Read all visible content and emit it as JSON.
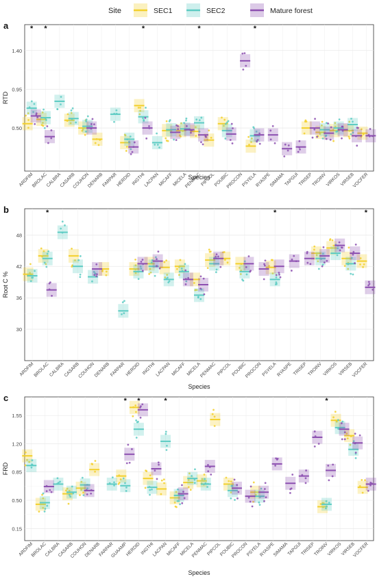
{
  "legend": {
    "title": "Site",
    "items": [
      {
        "label": "SEC1",
        "color": "#F3D02C"
      },
      {
        "label": "SEC2",
        "color": "#5CCBC3"
      },
      {
        "label": "Mature forest",
        "color": "#8C4FB0"
      }
    ]
  },
  "chart_data": [
    {
      "panel": "a",
      "type": "scatter",
      "ylabel": "RTD",
      "xlabel": "Species",
      "yticks": [
        0.5,
        0.95,
        1.4
      ],
      "ytick_labels": [
        "0.50",
        "0.95",
        "1.40"
      ],
      "ylim": [
        0.0,
        1.7
      ],
      "categories": [
        "ARDFIM",
        "BROLAC",
        "CALBRA",
        "CASARB",
        "COUHON",
        "DENARB",
        "FARPAR",
        "HERDID",
        "INGTHI",
        "LACPAN",
        "MICAFF",
        "MICELA",
        "PENMAC",
        "PIPCOL",
        "POUBIC",
        "PROCON",
        "PSYELA",
        "RYASPE",
        "SIMAMA",
        "TAPGUI",
        "TRISEP",
        "TROINV",
        "VIRKOS",
        "VIRSEB",
        "VOCFER"
      ],
      "significant": [
        "ARDFIM",
        "BROLAC",
        "INGTHI",
        "PENMAC",
        "PSYELA"
      ],
      "series": [
        {
          "name": "SEC1",
          "color": "#F3D02C",
          "means": {
            "ARDFIM": 0.55,
            "BROLAC": 0.6,
            "CASARB": 0.59,
            "COUHON": 0.5,
            "DENARB": 0.37,
            "HERDID": 0.33,
            "INGTHI": 0.76,
            "MICAFF": 0.47,
            "MICELA": 0.47,
            "PENMAC": 0.46,
            "PIPCOL": 0.36,
            "POUBIC": 0.55,
            "PSYELA": 0.29,
            "TRISEP": 0.5,
            "TROINV": 0.45,
            "VIRKOS": 0.47,
            "VIRSEB": 0.47,
            "VOCFER": 0.44
          }
        },
        {
          "name": "SEC2",
          "color": "#5CCBC3",
          "means": {
            "ARDFIM": 0.73,
            "BROLAC": 0.62,
            "CALBRA": 0.81,
            "CASARB": 0.61,
            "COUHON": 0.52,
            "FARPAR": 0.66,
            "HERDID": 0.37,
            "INGTHI": 0.63,
            "LACPAN": 0.33,
            "MICAFF": 0.48,
            "MICELA": 0.49,
            "PENMAC": 0.56,
            "POUBIC": 0.47,
            "PSYELA": 0.41,
            "TROINV": 0.48,
            "VIRKOS": 0.5,
            "VIRSEB": 0.54
          }
        },
        {
          "name": "Mature forest",
          "color": "#8C4FB0",
          "means": {
            "ARDFIM": 0.64,
            "BROLAC": 0.4,
            "COUHON": 0.5,
            "HERDID": 0.28,
            "INGTHI": 0.5,
            "MICAFF": 0.45,
            "MICELA": 0.48,
            "PENMAC": 0.42,
            "POUBIC": 0.43,
            "PROCON": 1.28,
            "PSYELA": 0.42,
            "RYASPE": 0.42,
            "SIMAMA": 0.26,
            "TAPGUI": 0.28,
            "TRISEP": 0.5,
            "TROINV": 0.44,
            "VIRKOS": 0.48,
            "VIRSEB": 0.41,
            "VOCFER": 0.41
          }
        }
      ]
    },
    {
      "panel": "b",
      "type": "scatter",
      "ylabel": "Root C %",
      "xlabel": "Species",
      "yticks": [
        30,
        36,
        42,
        48
      ],
      "ytick_labels": [
        "30",
        "36",
        "42",
        "48"
      ],
      "ylim": [
        24,
        53
      ],
      "categories": [
        "ARDFIM",
        "BROLAC",
        "CALBRA",
        "CASARB",
        "COUHON",
        "DENARB",
        "FARPAR",
        "HERDID",
        "INGTHI",
        "LACPAN",
        "MICAFF",
        "MICELA",
        "PENMAC",
        "PIPCOL",
        "POUBIC",
        "PROCON",
        "PSYELA",
        "RYASPE",
        "TRISEP",
        "TROINV",
        "VIRKOS",
        "VIRSEB",
        "VOCFER"
      ],
      "significant": [
        "BROLAC",
        "PSYELA",
        "VOCFER"
      ],
      "series": [
        {
          "name": "SEC1",
          "color": "#F3D02C",
          "means": {
            "ARDFIM": 40.5,
            "BROLAC": 44.0,
            "CASARB": 44.0,
            "DENARB": 41.5,
            "HERDID": 41.5,
            "INGTHI": 42.5,
            "LACPAN": 41.8,
            "MICAFF": 42.0,
            "MICELA": 39.5,
            "PENMAC": 43.2,
            "PIPCOL": 43.5,
            "POUBIC": 42.5,
            "PSYELA": 41.8,
            "TROINV": 44.5,
            "VIRKOS": 45.5,
            "VIRSEB": 43.5,
            "VOCFER": 43.0
          }
        },
        {
          "name": "SEC2",
          "color": "#5CCBC3",
          "means": {
            "ARDFIM": 40.2,
            "BROLAC": 43.5,
            "CALBRA": 48.5,
            "CASARB": 42.0,
            "COUHON": 40.0,
            "FARPAR": 33.5,
            "HERDID": 41.0,
            "INGTHI": 42.0,
            "LACPAN": 39.5,
            "MICAFF": 41.0,
            "MICELA": 36.5,
            "PENMAC": 42.5,
            "POUBIC": 41.0,
            "PSYELA": 39.5,
            "TROINV": 43.5,
            "VIRKOS": 44.5,
            "VIRSEB": 42.5
          }
        },
        {
          "name": "Mature forest",
          "color": "#8C4FB0",
          "means": {
            "BROLAC": 37.5,
            "COUHON": 41.5,
            "HERDID": 42.5,
            "INGTHI": 43.0,
            "MICAFF": 39.5,
            "MICELA": 38.5,
            "PENMAC": 43.5,
            "POUBIC": 42.5,
            "PROCON": 41.5,
            "PSYELA": 42.0,
            "RYASPE": 43.0,
            "TRISEP": 43.5,
            "TROINV": 44.0,
            "VIRKOS": 46.0,
            "VIRSEB": 44.5,
            "VOCFER": 38.0
          }
        }
      ]
    },
    {
      "panel": "c",
      "type": "scatter",
      "ylabel": "FRD",
      "xlabel": "Species",
      "yticks": [
        0.15,
        0.5,
        0.85,
        1.2,
        1.55
      ],
      "ytick_labels": [
        "0.15",
        "0.50",
        "0.85",
        "1.20",
        "1.55"
      ],
      "ylim": [
        0.0,
        1.78
      ],
      "categories": [
        "ARDFIM",
        "BROLAC",
        "CALBRA",
        "CASARB",
        "COUHON",
        "DENARB",
        "FARPAR",
        "GUAAMP",
        "HERDID",
        "INGTHI",
        "LACPAN",
        "MICAFF",
        "MICELA",
        "PENMAC",
        "PIPCOL",
        "POUBIC",
        "PROCON",
        "PSYELA",
        "RYASPE",
        "SIMAMA",
        "TAPGUI",
        "TRISEP",
        "TROINV",
        "VIRKOS",
        "VIRSEB",
        "VOCFER"
      ],
      "significant": [
        "GUAAMP",
        "HERDID",
        "LACPAN",
        "TROINV"
      ],
      "series": [
        {
          "name": "SEC1",
          "color": "#F3D02C",
          "means": {
            "ARDFIM": 1.05,
            "BROLAC": 0.45,
            "CASARB": 0.58,
            "COUHON": 0.65,
            "DENARB": 0.88,
            "GUAAMP": 0.8,
            "HERDID": 1.65,
            "INGTHI": 0.77,
            "LACPAN": 0.64,
            "MICAFF": 0.53,
            "MICELA": 0.72,
            "PENMAC": 0.74,
            "PIPCOL": 1.5,
            "POUBIC": 0.7,
            "PSYELA": 0.6,
            "TROINV": 0.42,
            "VIRKOS": 1.49,
            "VIRSEB": 1.3,
            "VOCFER": 0.66
          }
        },
        {
          "name": "SEC2",
          "color": "#5CCBC3",
          "means": {
            "ARDFIM": 0.93,
            "BROLAC": 0.47,
            "CALBRA": 0.7,
            "CASARB": 0.6,
            "COUHON": 0.69,
            "FARPAR": 0.7,
            "GUAAMP": 0.68,
            "HERDID": 1.38,
            "INGTHI": 0.66,
            "LACPAN": 1.23,
            "MICAFF": 0.56,
            "MICELA": 0.77,
            "PENMAC": 0.7,
            "POUBIC": 0.62,
            "PSYELA": 0.55,
            "TROINV": 0.45,
            "VIRKOS": 1.4,
            "VIRSEB": 1.13
          }
        },
        {
          "name": "Mature forest",
          "color": "#8C4FB0",
          "means": {
            "BROLAC": 0.67,
            "COUHON": 0.62,
            "GUAAMP": 1.07,
            "HERDID": 1.62,
            "INGTHI": 0.89,
            "MICAFF": 0.58,
            "PENMAC": 0.92,
            "POUBIC": 0.65,
            "PROCON": 0.55,
            "PSYELA": 0.6,
            "RYASPE": 0.95,
            "SIMAMA": 0.71,
            "TAPGUI": 0.8,
            "TRISEP": 1.28,
            "TROINV": 0.87,
            "VIRKOS": 1.38,
            "VIRSEB": 1.21,
            "VOCFER": 0.7
          }
        }
      ]
    }
  ]
}
